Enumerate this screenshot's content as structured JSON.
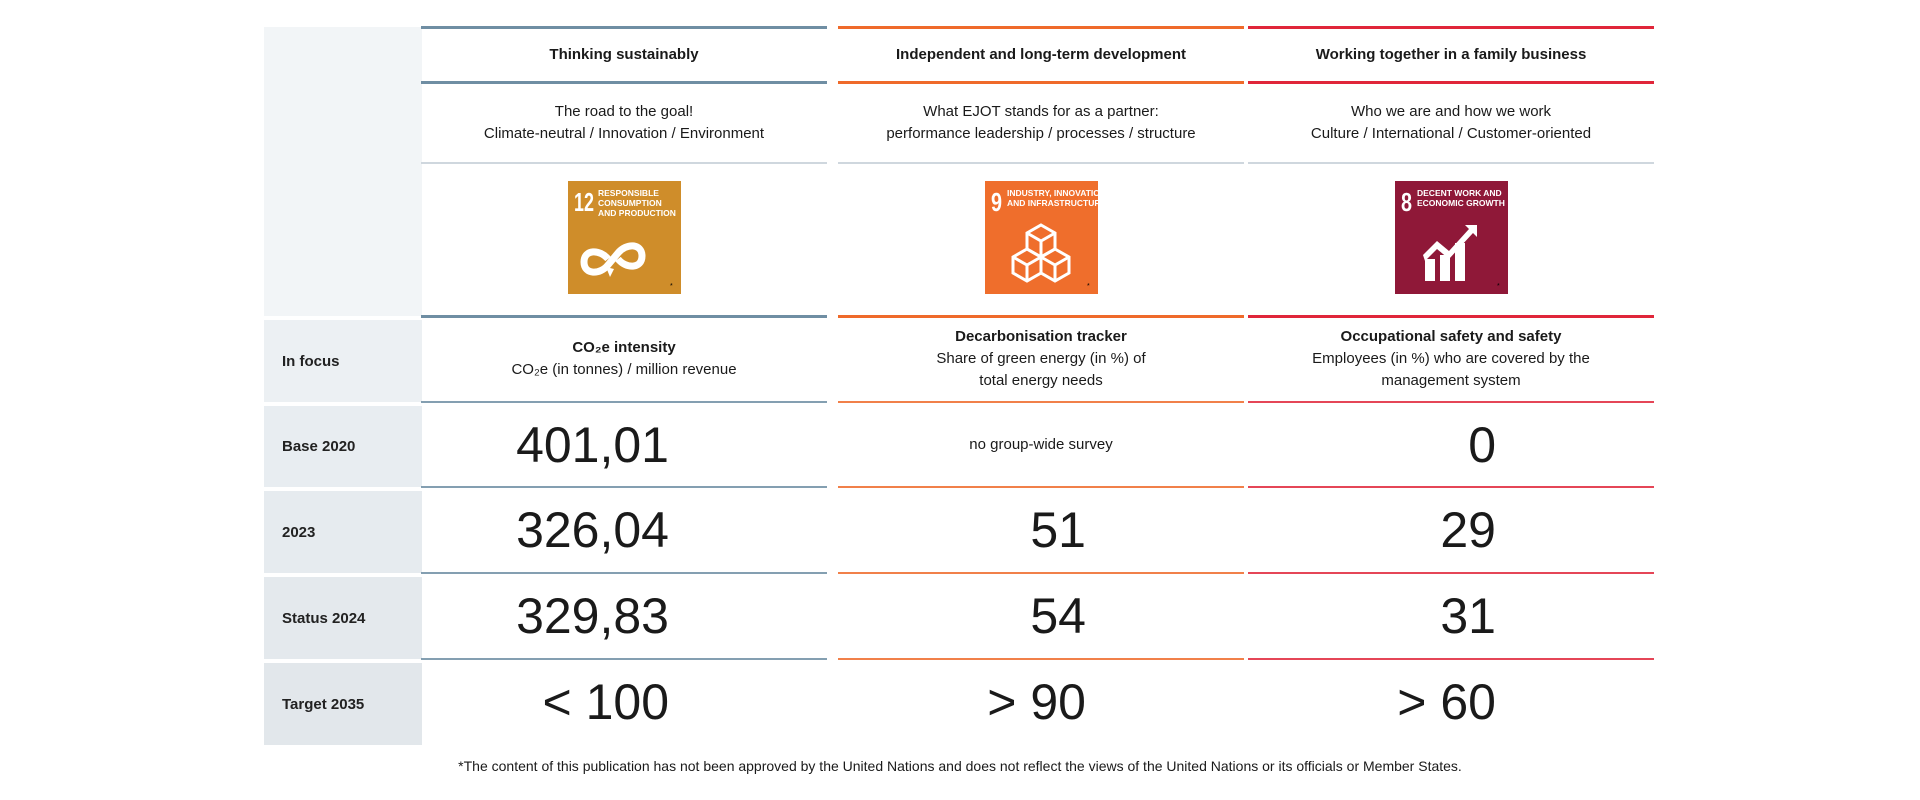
{
  "columns": [
    {
      "title": "Thinking sustainably",
      "subtitle1": "The road to the goal!",
      "subtitle2": "Climate-neutral / Innovation / Environment",
      "color": "#6f8ea3",
      "sdg": {
        "number": "12",
        "label1": "RESPONSIBLE",
        "label2": "CONSUMPTION",
        "label3": "AND PRODUCTION",
        "color": "#cf8d2a",
        "icon": "infinity-icon"
      },
      "focus_title": "CO₂e intensity",
      "focus_desc1": "CO₂e (in tonnes) / million revenue",
      "focus_desc2": "",
      "values": [
        "401,01",
        "326,04",
        "329,83",
        "< 100"
      ]
    },
    {
      "title": "Independent and long-term development",
      "subtitle1": "What EJOT stands for as a partner:",
      "subtitle2": "performance leadership / processes / structure",
      "color": "#ef6a2a",
      "sdg": {
        "number": "9",
        "label1": "INDUSTRY, INNOVATION",
        "label2": "AND INFRASTRUCTURE",
        "label3": "",
        "color": "#ef6e2c",
        "icon": "cubes-icon"
      },
      "focus_title": "Decarbonisation tracker",
      "focus_desc1": "Share of green energy (in %) of",
      "focus_desc2": "total energy needs",
      "values": [
        "no group-wide survey",
        "51",
        "54",
        "> 90"
      ]
    },
    {
      "title": "Working together in a family business",
      "subtitle1": "Who we are and how we work",
      "subtitle2": "Culture / International / Customer-oriented",
      "color": "#e0263a",
      "sdg": {
        "number": "8",
        "label1": "DECENT WORK AND",
        "label2": "ECONOMIC GROWTH",
        "label3": "",
        "color": "#8f1838",
        "icon": "growth-chart-icon"
      },
      "focus_title": "Occupational safety and safety",
      "focus_desc1": "Employees (in %) who are covered by the",
      "focus_desc2": "management system",
      "values": [
        "0",
        "29",
        "31",
        "> 60"
      ]
    }
  ],
  "row_labels": [
    "In focus",
    "Base 2020",
    "2023",
    "Status 2024",
    "Target 2035"
  ],
  "footnote": "*The content of this publication has not been approved by the United Nations and does not reflect the views of the United Nations or its officials or Member States."
}
